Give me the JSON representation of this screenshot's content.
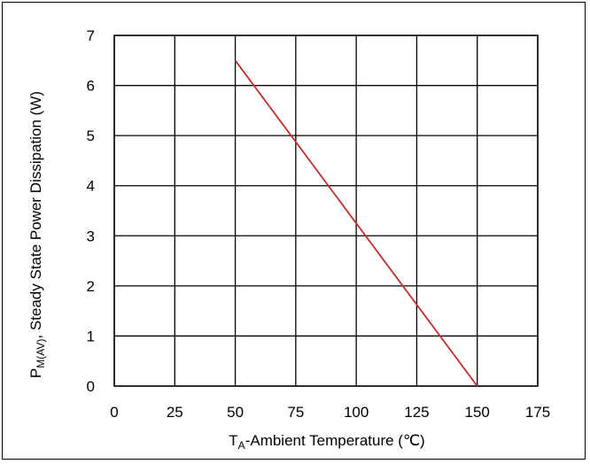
{
  "chart_data": {
    "type": "line",
    "title": "",
    "xlabel_main": "T",
    "xlabel_sub": "A",
    "xlabel_rest": "-Ambient Temperature (℃)",
    "ylabel_main": "P",
    "ylabel_sub": "M(AV)",
    "ylabel_rest": ", Steady State Power Dissipation (W)",
    "xlim": [
      0,
      175
    ],
    "ylim": [
      0,
      7
    ],
    "xticks": [
      0,
      25,
      50,
      75,
      100,
      125,
      150,
      175
    ],
    "yticks": [
      0,
      1,
      2,
      3,
      4,
      5,
      6,
      7
    ],
    "grid": true,
    "series": [
      {
        "color": "#c0302e",
        "x": [
          50,
          150
        ],
        "y": [
          6.5,
          0
        ]
      }
    ]
  }
}
